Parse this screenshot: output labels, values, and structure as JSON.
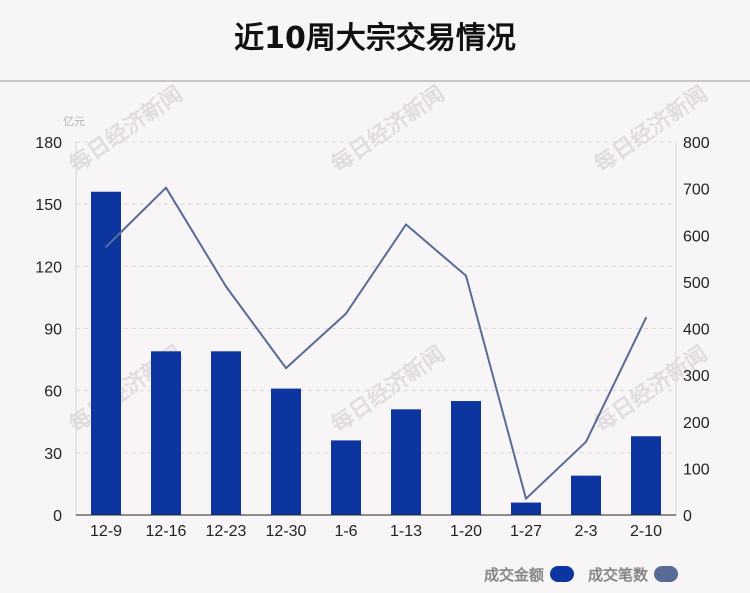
{
  "title": "近10周大宗交易情况",
  "chart_data": {
    "type": "bar",
    "categories": [
      "12-9",
      "12-16",
      "12-23",
      "12-30",
      "1-6",
      "1-13",
      "1-20",
      "1-27",
      "2-3",
      "2-10"
    ],
    "series": [
      {
        "name": "成交金额",
        "type": "bar",
        "axis": "left",
        "color": "#0d35a0",
        "values": [
          156,
          79,
          79,
          61,
          36,
          51,
          55,
          6,
          19,
          38
        ]
      },
      {
        "name": "成交笔数",
        "type": "line",
        "axis": "right",
        "color": "#586b96",
        "values": [
          575,
          702,
          490,
          315,
          432,
          623,
          513,
          35,
          157,
          423
        ]
      }
    ],
    "y_left": {
      "unit": "亿元",
      "ylim": [
        0,
        180
      ],
      "ticks": [
        0,
        30,
        60,
        90,
        120,
        150,
        180
      ]
    },
    "y_right": {
      "ylim": [
        0,
        800
      ],
      "ticks": [
        0,
        100,
        200,
        300,
        400,
        500,
        600,
        700,
        800
      ]
    },
    "grid": true,
    "legend_position": "bottom-right"
  },
  "watermark": "每日经济新闻"
}
